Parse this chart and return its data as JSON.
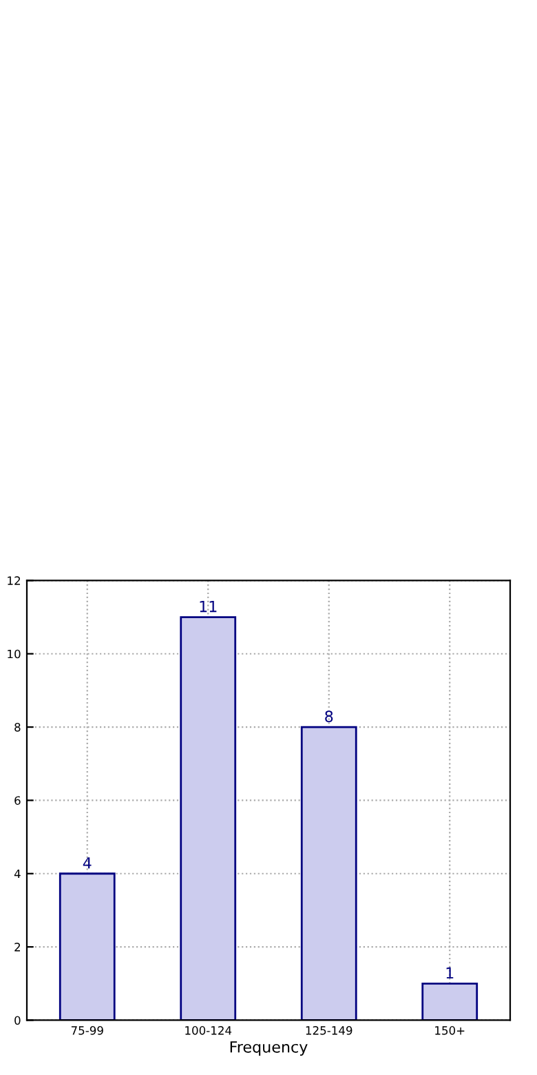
{
  "chart_data": {
    "type": "bar",
    "xlabel": "Frequency",
    "categories": [
      "75-99",
      "100-124",
      "125-149",
      "150+"
    ],
    "values": [
      4,
      11,
      8,
      1
    ],
    "color": "#ccccee",
    "ylim": [
      0,
      12
    ],
    "yticks": [
      0,
      2,
      4,
      6,
      8,
      10,
      12
    ],
    "grid": true,
    "data_labels": true
  }
}
